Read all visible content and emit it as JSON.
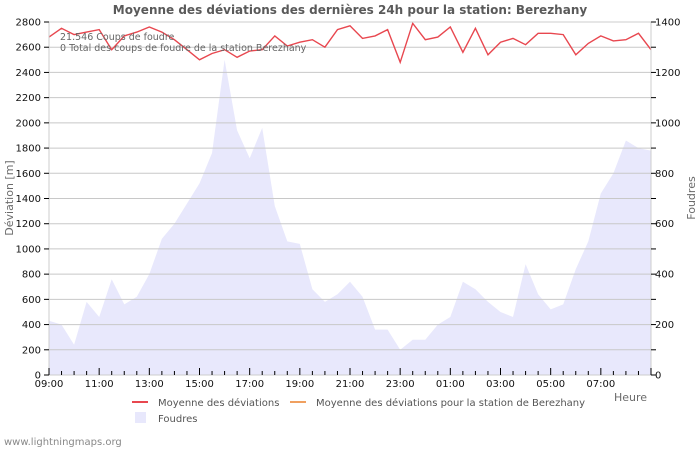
{
  "chart_data": {
    "type": "line",
    "title": "Moyenne des déviations des dernières 24h pour la station: Berezhany",
    "xlabel": "Heure",
    "ylabel": "Déviation  [m]",
    "y2label": "Foudres",
    "ylim": [
      0,
      2800
    ],
    "y2lim": [
      0,
      1400
    ],
    "yticks": [
      0,
      200,
      400,
      600,
      800,
      1000,
      1200,
      1400,
      1600,
      1800,
      2000,
      2200,
      2400,
      2600,
      2800
    ],
    "y2ticks": [
      0,
      200,
      400,
      600,
      800,
      1000,
      1200,
      1400
    ],
    "xtick_labels": [
      "09:00",
      "11:00",
      "13:00",
      "15:00",
      "17:00",
      "19:00",
      "21:00",
      "23:00",
      "01:00",
      "03:00",
      "05:00",
      "07:00"
    ],
    "grid": true,
    "legend_position": "bottom",
    "x": [
      "09:00",
      "09:30",
      "10:00",
      "10:30",
      "11:00",
      "11:30",
      "12:00",
      "12:30",
      "13:00",
      "13:30",
      "14:00",
      "14:30",
      "15:00",
      "15:30",
      "16:00",
      "16:30",
      "17:00",
      "17:30",
      "18:00",
      "18:30",
      "19:00",
      "19:30",
      "20:00",
      "20:30",
      "21:00",
      "21:30",
      "22:00",
      "22:30",
      "23:00",
      "23:30",
      "00:00",
      "00:30",
      "01:00",
      "01:30",
      "02:00",
      "02:30",
      "03:00",
      "03:30",
      "04:00",
      "04:30",
      "05:00",
      "05:30",
      "06:00",
      "06:30",
      "07:00",
      "07:30",
      "08:00",
      "08:30",
      "08:50"
    ],
    "series": [
      {
        "name": "Moyenne des déviations",
        "color": "#e8474f",
        "axis": "left",
        "kind": "line",
        "values": [
          2680,
          2750,
          2700,
          2720,
          2740,
          2580,
          2690,
          2720,
          2760,
          2720,
          2660,
          2580,
          2500,
          2550,
          2580,
          2520,
          2570,
          2580,
          2690,
          2610,
          2640,
          2660,
          2600,
          2740,
          2770,
          2670,
          2690,
          2740,
          2480,
          2790,
          2660,
          2680,
          2760,
          2560,
          2750,
          2540,
          2640,
          2670,
          2620,
          2710,
          2710,
          2700,
          2540,
          2630,
          2690,
          2650,
          2660,
          2710,
          2580
        ]
      },
      {
        "name": "Moyenne des déviations pour la station de Berezhany",
        "color": "#f0a060",
        "axis": "left",
        "kind": "line",
        "values": []
      },
      {
        "name": "Foudres",
        "color": "#e8e8fc",
        "axis": "right",
        "kind": "area",
        "values": [
          215,
          200,
          120,
          290,
          230,
          380,
          280,
          310,
          400,
          540,
          600,
          680,
          760,
          880,
          1250,
          970,
          860,
          980,
          670,
          530,
          520,
          340,
          290,
          320,
          370,
          310,
          180,
          180,
          100,
          140,
          140,
          200,
          230,
          370,
          340,
          290,
          250,
          230,
          440,
          320,
          260,
          280,
          420,
          530,
          720,
          800,
          930,
          900,
          890
        ]
      }
    ],
    "annotations": [
      "21.546  Coups de foudre",
      "0 Total des coups de foudre de la station Berezhany"
    ]
  },
  "legend": {
    "items": [
      {
        "label": "Moyenne des déviations",
        "color": "#e8474f"
      },
      {
        "label": "Moyenne des déviations pour la station de Berezhany",
        "color": "#f0a060"
      },
      {
        "label": "Foudres",
        "color": "#e8e8fc"
      }
    ]
  },
  "footer": {
    "text": "www.lightningmaps.org"
  }
}
